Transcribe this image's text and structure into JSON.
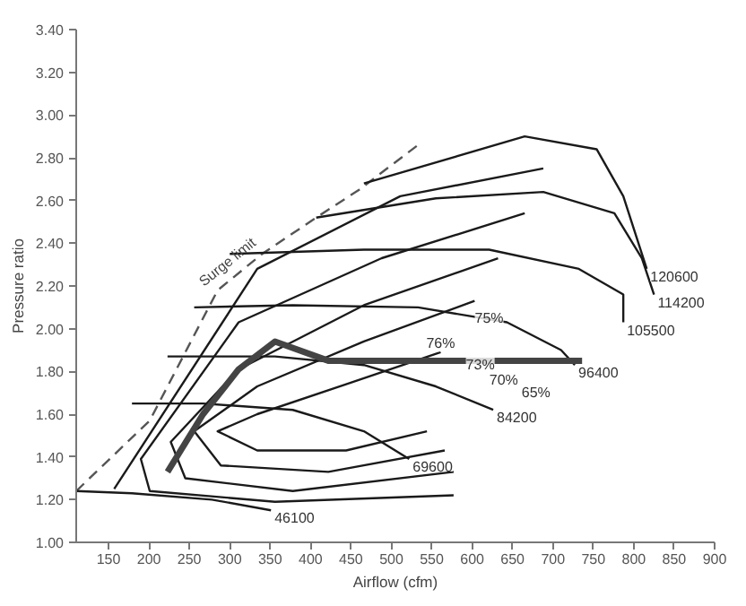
{
  "chart_data": {
    "type": "line",
    "xlabel": "Airflow (cfm)",
    "ylabel": "Pressure ratio",
    "xlim": [
      110,
      900
    ],
    "ylim": [
      1.0,
      3.4
    ],
    "xticks": [
      150,
      200,
      250,
      300,
      350,
      400,
      450,
      500,
      550,
      600,
      650,
      700,
      750,
      800,
      850,
      900
    ],
    "yticks": [
      {
        "value": 1.0,
        "label": "1.00"
      },
      {
        "value": 1.2,
        "label": "1.20"
      },
      {
        "value": 1.4,
        "label": "1.40"
      },
      {
        "value": 1.6,
        "label": "1.60"
      },
      {
        "value": 1.8,
        "label": "1.80"
      },
      {
        "value": 2.0,
        "label": "2.00"
      },
      {
        "value": 2.2,
        "label": "2.20"
      },
      {
        "value": 2.4,
        "label": "2.40"
      },
      {
        "value": 2.6,
        "label": "2.60"
      },
      {
        "value": 2.8,
        "label": "2.80"
      },
      {
        "value": 3.0,
        "label": "3.00"
      },
      {
        "value": 3.2,
        "label": "3.20"
      },
      {
        "value": 3.4,
        "label": "3.40"
      }
    ],
    "grid": false,
    "marker": "none",
    "line_style": "solid",
    "series": [
      {
        "name": "Surge limit",
        "color": "#555555",
        "line_style": "dashed",
        "x": [
          110,
          201,
          285,
          340,
          407,
          460,
          533
        ],
        "values": [
          1.24,
          1.57,
          2.18,
          2.35,
          2.52,
          2.65,
          2.86
        ]
      },
      {
        "name": "46100",
        "color": "#1a1a1a",
        "x": [
          110,
          179,
          278,
          351
        ],
        "values": [
          1.24,
          1.23,
          1.2,
          1.15
        ]
      },
      {
        "name": "69600",
        "color": "#1a1a1a",
        "x": [
          179,
          267,
          378,
          466,
          522
        ],
        "values": [
          1.65,
          1.65,
          1.62,
          1.52,
          1.39
        ]
      },
      {
        "name": "84200",
        "color": "#1a1a1a",
        "x": [
          223,
          356,
          466,
          555,
          626
        ],
        "values": [
          1.87,
          1.87,
          1.83,
          1.73,
          1.62
        ]
      },
      {
        "name": "96400",
        "color": "#1a1a1a",
        "x": [
          256,
          378,
          533,
          643,
          710,
          727
        ],
        "values": [
          2.1,
          2.11,
          2.1,
          2.03,
          1.9,
          1.83
        ]
      },
      {
        "name": "105500",
        "color": "#1a1a1a",
        "x": [
          300,
          466,
          621,
          732,
          787,
          787
        ],
        "values": [
          2.35,
          2.37,
          2.37,
          2.28,
          2.16,
          2.03
        ]
      },
      {
        "name": "114200",
        "color": "#1a1a1a",
        "x": [
          407,
          555,
          688,
          776,
          810,
          825
        ],
        "values": [
          2.52,
          2.61,
          2.64,
          2.54,
          2.33,
          2.16
        ]
      },
      {
        "name": "120600",
        "color": "#1a1a1a",
        "x": [
          466,
          665,
          754,
          787,
          816
        ],
        "values": [
          2.68,
          2.9,
          2.84,
          2.62,
          2.28
        ]
      },
      {
        "color": "#1a1a1a",
        "x": [
          544,
          444,
          334,
          285,
          334,
          444,
          561
        ],
        "values": [
          1.52,
          1.43,
          1.43,
          1.52,
          1.6,
          1.74,
          1.89
        ]
      },
      {
        "color": "#1a1a1a",
        "x": [
          566,
          422,
          289,
          256,
          334,
          466,
          603
        ],
        "values": [
          1.43,
          1.33,
          1.36,
          1.52,
          1.73,
          1.94,
          2.13
        ]
      },
      {
        "color": "#1a1a1a",
        "x": [
          577,
          378,
          245,
          227,
          311,
          466,
          632
        ],
        "values": [
          1.33,
          1.24,
          1.3,
          1.47,
          1.81,
          2.11,
          2.33
        ]
      },
      {
        "color": "#1a1a1a",
        "x": [
          577,
          356,
          201,
          190,
          311,
          488,
          665
        ],
        "values": [
          1.22,
          1.19,
          1.24,
          1.39,
          2.03,
          2.33,
          2.54
        ]
      },
      {
        "color": "#1a1a1a",
        "x": [
          157,
          334,
          511,
          688
        ],
        "values": [
          1.25,
          2.28,
          2.62,
          2.75
        ]
      },
      {
        "color": "#444444",
        "x": [
          223,
          267,
          311,
          356,
          422,
          577,
          736
        ],
        "values": [
          1.33,
          1.6,
          1.81,
          1.94,
          1.85,
          1.85,
          1.85
        ]
      }
    ],
    "annotations": [
      {
        "text": "76%",
        "x": 561,
        "y": 1.93
      },
      {
        "text": "75%",
        "x": 621,
        "y": 2.05
      },
      {
        "text": "73%",
        "x": 610,
        "y": 1.83
      },
      {
        "text": "70%",
        "x": 639,
        "y": 1.76
      },
      {
        "text": "65%",
        "x": 679,
        "y": 1.7
      }
    ]
  }
}
